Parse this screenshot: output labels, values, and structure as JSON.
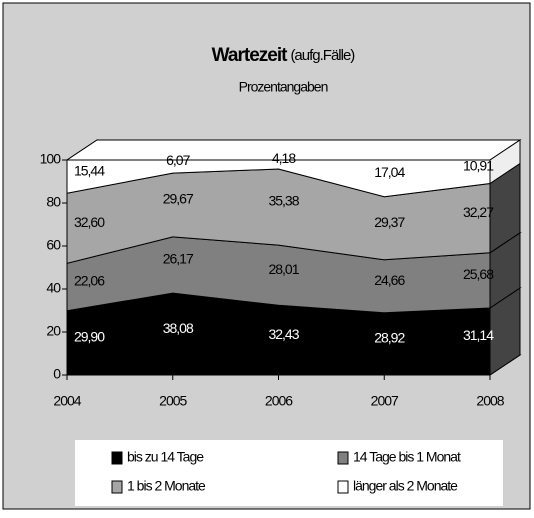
{
  "chart_data": {
    "type": "area3d",
    "title": "Wartezeit",
    "title_note": "(aufg.Fälle)",
    "subtitle": "Prozentangaben",
    "categories": [
      "2004",
      "2005",
      "2006",
      "2007",
      "2008"
    ],
    "ylim": [
      0,
      100
    ],
    "yticks": [
      0,
      20,
      40,
      60,
      80,
      100
    ],
    "stacked": true,
    "legend": "bottom",
    "series": [
      {
        "name": "bis zu 14 Tage",
        "color": "#000000",
        "values": [
          29.9,
          38.08,
          32.43,
          28.92,
          31.14
        ],
        "value_labels": [
          "29,90",
          "38,08",
          "32,43",
          "28,92",
          "31,14"
        ]
      },
      {
        "name": "14 Tage bis 1 Monat",
        "color": "#808080",
        "values": [
          22.06,
          26.17,
          28.01,
          24.66,
          25.68
        ],
        "value_labels": [
          "22,06",
          "26,17",
          "28,01",
          "24,66",
          "25,68"
        ]
      },
      {
        "name": "1 bis 2 Monate",
        "color": "#a6a6a6",
        "values": [
          32.6,
          29.67,
          35.38,
          29.37,
          32.27
        ],
        "value_labels": [
          "32,60",
          "29,67",
          "35,38",
          "29,37",
          "32,27"
        ]
      },
      {
        "name": "länger als 2 Monate",
        "color": "#ffffff",
        "values": [
          15.44,
          6.07,
          4.18,
          17.04,
          10.91
        ],
        "value_labels": [
          "15,44",
          "6,07",
          "4,18",
          "17,04",
          "10,91"
        ]
      }
    ]
  }
}
